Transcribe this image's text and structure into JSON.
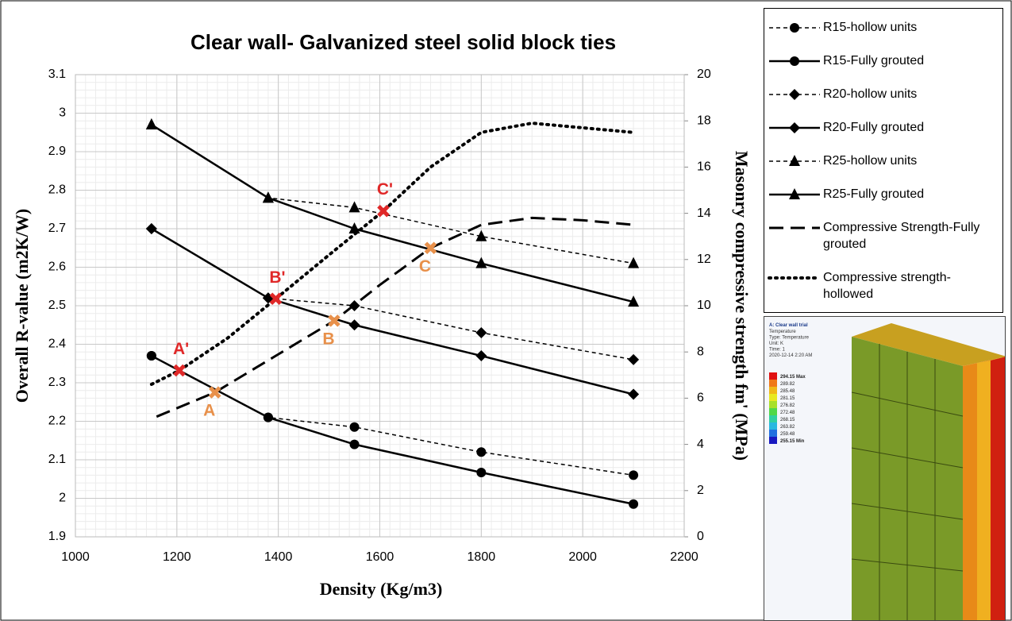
{
  "chart_data": {
    "type": "line",
    "title": "Clear wall- Galvanized steel solid block ties",
    "x_label": "Density (Kg/m3)",
    "y_label": "Overall R-value (m2K/W)",
    "y2_label": "Masonry compressive strength fm' (MPa)",
    "xlim": [
      1000,
      2200
    ],
    "xticks": [
      1000,
      1200,
      1400,
      1600,
      1800,
      2000,
      2200
    ],
    "ylim": [
      1.9,
      3.1
    ],
    "yticks": [
      1.9,
      2,
      2.1,
      2.2,
      2.3,
      2.4,
      2.5,
      2.6,
      2.7,
      2.8,
      2.9,
      3,
      3.1
    ],
    "y2lim": [
      0,
      20
    ],
    "y2ticks": [
      0,
      2,
      4,
      6,
      8,
      10,
      12,
      14,
      16,
      18,
      20
    ],
    "grid": true,
    "legend": "right",
    "series": [
      {
        "name": "R15-hollow units",
        "color": "#000000",
        "style": "dashed",
        "marker": "circle",
        "x": [
          1150,
          1380,
          1550,
          1800,
          2100
        ],
        "values": [
          2.37,
          2.21,
          2.185,
          2.12,
          2.06
        ]
      },
      {
        "name": "R15-Fully grouted",
        "color": "#000000",
        "style": "solid",
        "marker": "circle",
        "x": [
          1150,
          1380,
          1550,
          1800,
          2100
        ],
        "values": [
          2.37,
          2.21,
          2.14,
          2.067,
          1.985
        ]
      },
      {
        "name": "R20-hollow units",
        "color": "#000000",
        "style": "dashed",
        "marker": "diamond",
        "x": [
          1150,
          1380,
          1550,
          1800,
          2100
        ],
        "values": [
          2.7,
          2.52,
          2.5,
          2.43,
          2.36
        ]
      },
      {
        "name": "R20-Fully grouted",
        "color": "#000000",
        "style": "solid",
        "marker": "diamond",
        "x": [
          1150,
          1380,
          1550,
          1800,
          2100
        ],
        "values": [
          2.7,
          2.52,
          2.45,
          2.37,
          2.27
        ]
      },
      {
        "name": "R25-hollow units",
        "color": "#000000",
        "style": "dashed",
        "marker": "triangle",
        "x": [
          1150,
          1380,
          1550,
          1800,
          2100
        ],
        "values": [
          2.97,
          2.78,
          2.755,
          2.68,
          2.61
        ]
      },
      {
        "name": "R25-Fully grouted",
        "color": "#000000",
        "style": "solid",
        "marker": "triangle",
        "x": [
          1150,
          1380,
          1550,
          1800,
          2100
        ],
        "values": [
          2.97,
          2.78,
          2.7,
          2.61,
          2.51
        ]
      },
      {
        "name": "Compressive Strength-Fully grouted",
        "color": "#000000",
        "style": "long-dash",
        "marker": "none",
        "axis": "y2",
        "x": [
          1160,
          1275,
          1400,
          1510,
          1600,
          1700,
          1800,
          1900,
          2000,
          2100
        ],
        "values": [
          5.2,
          6.25,
          7.9,
          9.35,
          10.9,
          12.5,
          13.5,
          13.8,
          13.7,
          13.5
        ]
      },
      {
        "name": "Compressive strength-hollowed",
        "color": "#000000",
        "style": "dotted",
        "marker": "none",
        "axis": "y2",
        "x": [
          1150,
          1205,
          1300,
          1395,
          1500,
          1607,
          1700,
          1800,
          1900,
          2000,
          2100
        ],
        "values": [
          6.6,
          7.2,
          8.6,
          10.3,
          12.2,
          14.1,
          16,
          17.5,
          17.9,
          17.7,
          17.5
        ]
      }
    ],
    "annotations": [
      {
        "text": "A'",
        "x": 1205,
        "y2": 7.2,
        "color": "#e02828",
        "position": "above"
      },
      {
        "text": "B'",
        "x": 1395,
        "y2": 10.3,
        "color": "#e02828",
        "position": "above"
      },
      {
        "text": "C'",
        "x": 1607,
        "y2": 14.1,
        "color": "#e02828",
        "position": "above"
      },
      {
        "text": "A",
        "x": 1275,
        "y2": 6.25,
        "color": "#e8904a",
        "position": "below"
      },
      {
        "text": "B",
        "x": 1510,
        "y2": 9.35,
        "color": "#e8904a",
        "position": "below"
      },
      {
        "text": "C",
        "x": 1700,
        "y2": 12.5,
        "color": "#e8904a",
        "position": "below"
      }
    ]
  },
  "inset": {
    "title": "A: Clear wall trial",
    "lines": [
      "Temperature",
      "Type: Temperature",
      "Unit: K",
      "Time: 1",
      "2020-12-14 2:20 AM"
    ],
    "scale": [
      {
        "label": "294.15 Max",
        "color": "#e01010"
      },
      {
        "label": "289.82",
        "color": "#f07818"
      },
      {
        "label": "285.48",
        "color": "#f0b818"
      },
      {
        "label": "281.15",
        "color": "#e8e820"
      },
      {
        "label": "276.82",
        "color": "#a8e028"
      },
      {
        "label": "272.48",
        "color": "#50d848"
      },
      {
        "label": "268.15",
        "color": "#30d0a0"
      },
      {
        "label": "263.82",
        "color": "#28b8e0"
      },
      {
        "label": "259.48",
        "color": "#2070e0"
      },
      {
        "label": "255.15 Min",
        "color": "#1818c0"
      }
    ]
  }
}
